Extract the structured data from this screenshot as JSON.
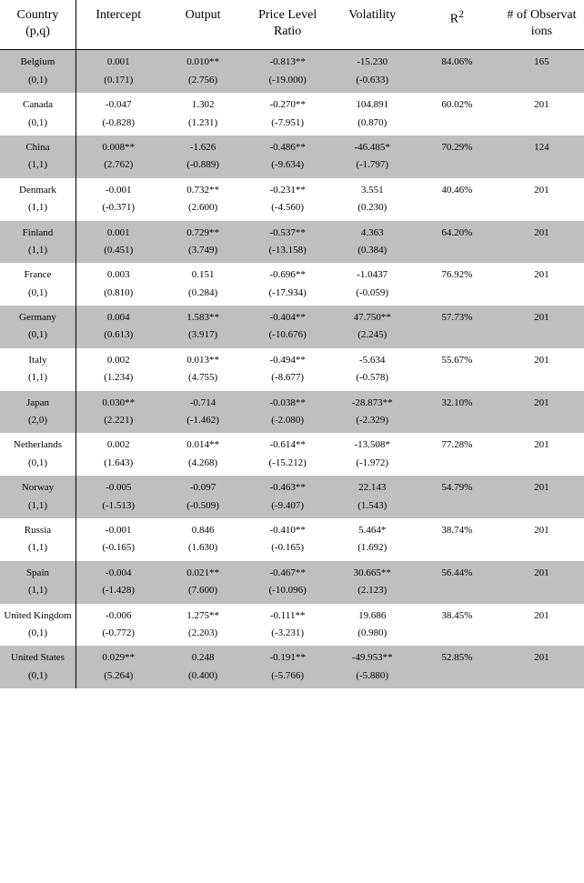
{
  "headers": {
    "country": "Country",
    "country_sub": "(p,q)",
    "intercept": "Intercept",
    "output": "Output",
    "price": "Price Level Ratio",
    "volatility": "Volatility",
    "r2": "R",
    "r2_sup": "2",
    "observations": "# of Observat ions"
  },
  "rows": [
    {
      "country": "Belgium",
      "pq": "(0,1)",
      "intercept": "0.001",
      "intercept_t": "(0.171)",
      "output": "0.010**",
      "output_t": "(2.756)",
      "price": "-0.813**",
      "price_t": "(-19.000)",
      "volatility": "-15.230",
      "volatility_t": "(-0.633)",
      "r2": "84.06%",
      "obs": "165",
      "shaded": true
    },
    {
      "country": "Canada",
      "pq": "(0,1)",
      "intercept": "-0.047",
      "intercept_t": "(-0.828)",
      "output": "1.302",
      "output_t": "(1.231)",
      "price": "-0.270**",
      "price_t": "(-7.951)",
      "volatility": "104.891",
      "volatility_t": "(0.870)",
      "r2": "60.02%",
      "obs": "201",
      "shaded": false
    },
    {
      "country": "China",
      "pq": "(1,1)",
      "intercept": "0.008**",
      "intercept_t": "(2.762)",
      "output": "-1.626",
      "output_t": "(-0.889)",
      "price": "-0.486**",
      "price_t": "(-9.634)",
      "volatility": "-46.485*",
      "volatility_t": "(-1.797)",
      "r2": "70.29%",
      "obs": "124",
      "shaded": true
    },
    {
      "country": "Denmark",
      "pq": "(1,1)",
      "intercept": "-0.001",
      "intercept_t": "(-0.371)",
      "output": "0.732**",
      "output_t": "(2.600)",
      "price": "-0.231**",
      "price_t": "(-4.560)",
      "volatility": "3.551",
      "volatility_t": "(0.230)",
      "r2": "40.46%",
      "obs": "201",
      "shaded": false
    },
    {
      "country": "Finland",
      "pq": "(1,1)",
      "intercept": "0.001",
      "intercept_t": "(0.451)",
      "output": "0.729**",
      "output_t": "(3.749)",
      "price": "-0.537**",
      "price_t": "(-13.158)",
      "volatility": "4.363",
      "volatility_t": "(0.384)",
      "r2": "64.20%",
      "obs": "201",
      "shaded": true
    },
    {
      "country": "France",
      "pq": "(0,1)",
      "intercept": "0.003",
      "intercept_t": "(0.810)",
      "output": "0.151",
      "output_t": "(0.284)",
      "price": "-0.696**",
      "price_t": "(-17.934)",
      "volatility": "-1.0437",
      "volatility_t": "(-0.059)",
      "r2": "76.92%",
      "obs": "201",
      "shaded": false
    },
    {
      "country": "Germany",
      "pq": "(0,1)",
      "intercept": "0.004",
      "intercept_t": "(0.613)",
      "output": "1.583**",
      "output_t": "(3.917)",
      "price": "-0.404**",
      "price_t": "(-10.676)",
      "volatility": "47.750**",
      "volatility_t": "(2.245)",
      "r2": "57.73%",
      "obs": "201",
      "shaded": true
    },
    {
      "country": "Italy",
      "pq": "(1,1)",
      "intercept": "0.002",
      "intercept_t": "(1.234)",
      "output": "0.013**",
      "output_t": "(4.755)",
      "price": "-0.494**",
      "price_t": "(-8.677)",
      "volatility": "-5.634",
      "volatility_t": "(-0.578)",
      "r2": "55.67%",
      "obs": "201",
      "shaded": false
    },
    {
      "country": "Japan",
      "pq": "(2,0)",
      "intercept": "0.030**",
      "intercept_t": "(2.221)",
      "output": "-0.714",
      "output_t": "(-1.462)",
      "price": "-0.038**",
      "price_t": "(-2.080)",
      "volatility": "-28.873**",
      "volatility_t": "(-2.329)",
      "r2": "32.10%",
      "obs": "201",
      "shaded": true
    },
    {
      "country": "Netherlands",
      "pq": "(0,1)",
      "intercept": "0.002",
      "intercept_t": "(1.643)",
      "output": "0.014**",
      "output_t": "(4.268)",
      "price": "-0.614**",
      "price_t": "(-15.212)",
      "volatility": "-13.508*",
      "volatility_t": "(-1.972)",
      "r2": "77.28%",
      "obs": "201",
      "shaded": false
    },
    {
      "country": "Norway",
      "pq": "(1,1)",
      "intercept": "-0.005",
      "intercept_t": "(-1.513)",
      "output": "-0.097",
      "output_t": "(-0.509)",
      "price": "-0.463**",
      "price_t": "(-9.407)",
      "volatility": "22.143",
      "volatility_t": "(1.543)",
      "r2": "54.79%",
      "obs": "201",
      "shaded": true
    },
    {
      "country": "Russia",
      "pq": "(1,1)",
      "intercept": "-0.001",
      "intercept_t": "(-0.165)",
      "output": "0.846",
      "output_t": "(1.630)",
      "price": "-0.410**",
      "price_t": "(-0.165)",
      "volatility": "5.464*",
      "volatility_t": "(1.692)",
      "r2": "38.74%",
      "obs": "201",
      "shaded": false
    },
    {
      "country": "Spain",
      "pq": "(1,1)",
      "intercept": "-0.004",
      "intercept_t": "(-1.428)",
      "output": "0.021**",
      "output_t": "(7.600)",
      "price": "-0.467**",
      "price_t": "(-10.096)",
      "volatility": "30.665**",
      "volatility_t": "(2.123)",
      "r2": "56.44%",
      "obs": "201",
      "shaded": true
    },
    {
      "country": "United Kingdom",
      "pq": "(0,1)",
      "intercept": "-0.006",
      "intercept_t": "(-0.772)",
      "output": "1.275**",
      "output_t": "(2.203)",
      "price": "-0.111**",
      "price_t": "(-3.231)",
      "volatility": "19.686",
      "volatility_t": "(0.980)",
      "r2": "38.45%",
      "obs": "201",
      "shaded": false
    },
    {
      "country": "United States",
      "pq": "(0,1)",
      "intercept": "0.029**",
      "intercept_t": "(5.264)",
      "output": "0.248",
      "output_t": "(0.400)",
      "price": "-0.191**",
      "price_t": "(-5.766)",
      "volatility": "-49.953**",
      "volatility_t": "(-5.880)",
      "r2": "52.85%",
      "obs": "201",
      "shaded": true
    }
  ]
}
